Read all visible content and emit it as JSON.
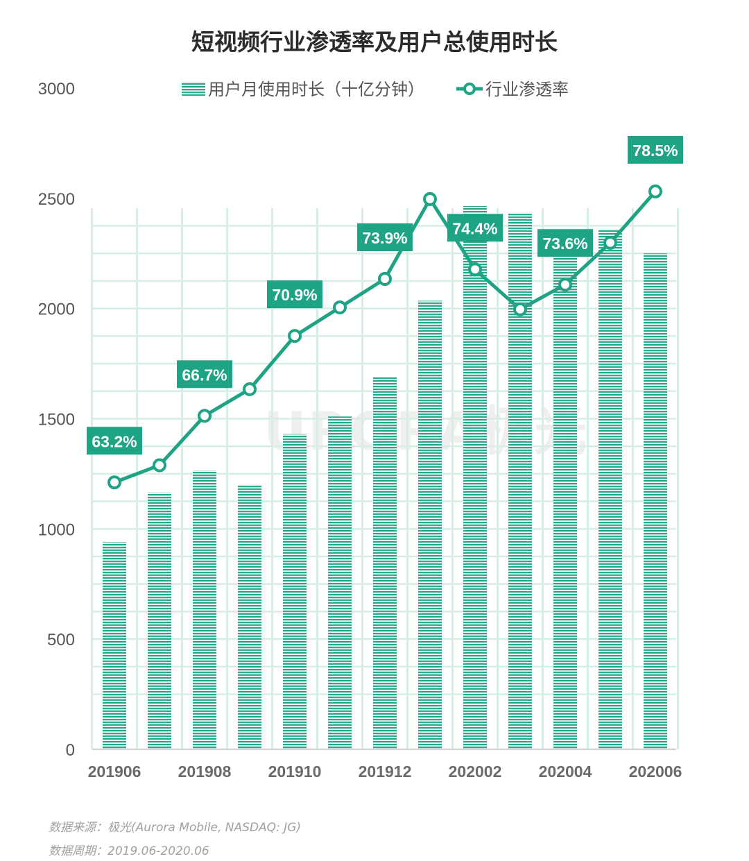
{
  "title": "短视频行业渗透率及用户总使用时长",
  "watermark": "URORA极光",
  "footer": {
    "source": "数据来源：极光(Aurora Mobile, NASDAQ: JG)",
    "period": "数据周期：2019.06-2020.06"
  },
  "colors": {
    "bar": "#26a88a",
    "line": "#1ea384",
    "label_bg": "#1ea384",
    "grid": "#d7eee6"
  },
  "chart_data": {
    "type": "bar",
    "categories": [
      "201906",
      "201907",
      "201908",
      "201909",
      "201910",
      "201911",
      "201912",
      "202001",
      "202002",
      "202003",
      "202004",
      "202005",
      "202006"
    ],
    "x_tick_labels": [
      "201906",
      "",
      "201908",
      "",
      "201910",
      "",
      "201912",
      "",
      "202002",
      "",
      "202004",
      "",
      "202006"
    ],
    "ylim": [
      0,
      3000
    ],
    "y_ticks": [
      0,
      500,
      1000,
      1500,
      2000,
      2500,
      3000
    ],
    "series": [
      {
        "name": "用户月使用时长（十亿分钟）",
        "type": "bar",
        "values": [
          940,
          1165,
          1265,
          1200,
          1430,
          1510,
          1690,
          2035,
          2465,
          2430,
          2315,
          2360,
          2250
        ]
      },
      {
        "name": "行业渗透率",
        "type": "line",
        "values": [
          63.2,
          64.1,
          66.7,
          68.1,
          70.9,
          72.4,
          73.9,
          78.1,
          74.4,
          72.3,
          73.6,
          75.8,
          78.5
        ],
        "labels": [
          "63.2%",
          "",
          "66.7%",
          "",
          "70.9%",
          "",
          "73.9%",
          "",
          "74.4%",
          "",
          "73.6%",
          "",
          "78.5%"
        ]
      }
    ],
    "legend_position": "top"
  }
}
